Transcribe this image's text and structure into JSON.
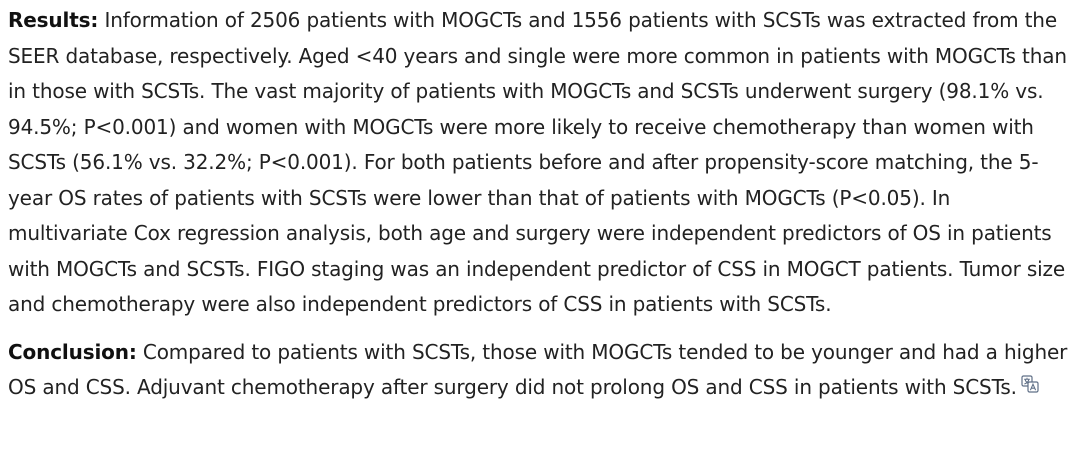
{
  "results": {
    "label": "Results:",
    "text": " Information of 2506 patients with MOGCTs and 1556 patients with SCSTs was extracted from the SEER database, respectively. Aged <40 years and single were more common in patients with MOGCTs than in those with SCSTs. The vast majority of patients with MOGCTs and SCSTs underwent surgery (98.1% vs. 94.5%; P<0.001) and women with MOGCTs were more likely to receive chemotherapy than women with SCSTs (56.1% vs. 32.2%; P<0.001). For both patients before and after propensity-score matching, the 5-year OS rates of patients with SCSTs were lower than that of patients with MOGCTs (P<0.05). In multivariate Cox regression analysis, both age and surgery were independent predictors of OS in patients with MOGCTs and SCSTs. FIGO staging was an independent predictor of CSS in MOGCT patients. Tumor size and chemotherapy were also independent predictors of CSS in patients with SCSTs."
  },
  "conclusion": {
    "label": "Conclusion:",
    "text": " Compared to patients with SCSTs, those with MOGCTs tended to be younger and had a higher OS and CSS. Adjuvant chemotherapy after surgery did not prolong OS and CSS in patients with SCSTs."
  },
  "icons": {
    "translate": "translate-icon"
  }
}
